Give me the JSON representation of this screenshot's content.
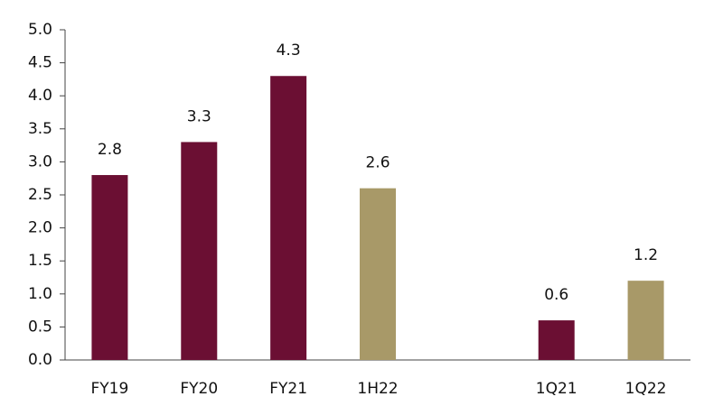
{
  "chart_data": {
    "type": "bar",
    "categories": [
      "FY19",
      "FY20",
      "FY21",
      "1H22",
      null,
      "1Q21",
      "1Q22"
    ],
    "values": [
      2.8,
      3.3,
      4.3,
      2.6,
      null,
      0.6,
      1.2
    ],
    "colors": [
      "#6b0f33",
      "#6b0f33",
      "#6b0f33",
      "#a89968",
      null,
      "#6b0f33",
      "#a89968"
    ],
    "ylim": [
      0,
      5
    ],
    "yticks": [
      {
        "value": 0,
        "label": "0.0"
      },
      {
        "value": 0.5,
        "label": "0.5"
      },
      {
        "value": 1,
        "label": "1.0"
      },
      {
        "value": 1.5,
        "label": "1.5"
      },
      {
        "value": 2,
        "label": "2.0"
      },
      {
        "value": 2.5,
        "label": "2.5"
      },
      {
        "value": 3,
        "label": "3.0"
      },
      {
        "value": 3.5,
        "label": "3.5"
      },
      {
        "value": 4,
        "label": "4.0"
      },
      {
        "value": 4.5,
        "label": "4.5"
      },
      {
        "value": 5,
        "label": "5.0"
      }
    ],
    "grid": false
  }
}
